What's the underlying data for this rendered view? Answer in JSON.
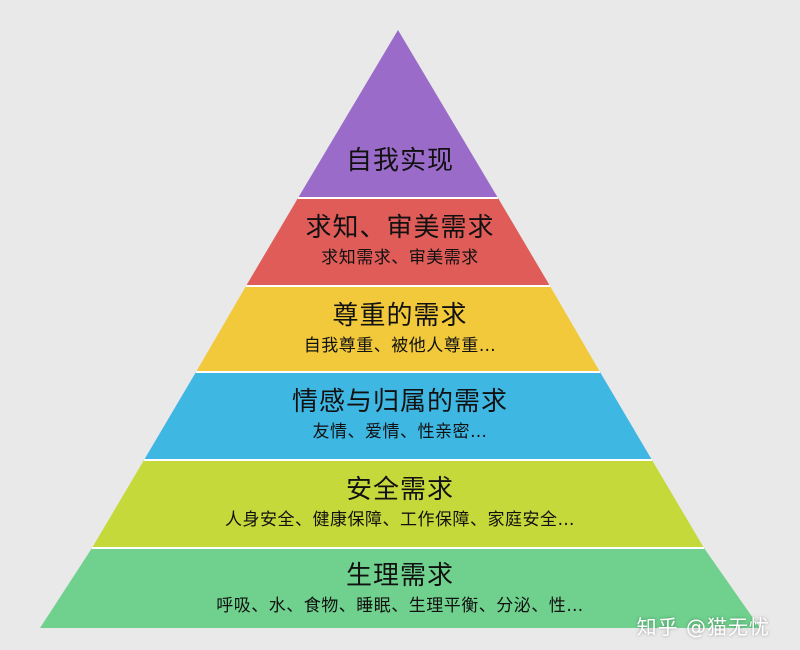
{
  "levels": [
    {
      "title": "自我实现",
      "subtitle": "",
      "color": "#9b6bc9"
    },
    {
      "title": "求知、审美需求",
      "subtitle": "求知需求、审美需求",
      "color": "#e05c58"
    },
    {
      "title": "尊重的需求",
      "subtitle": "自我尊重、被他人尊重…",
      "color": "#f2c93a"
    },
    {
      "title": "情感与归属的需求",
      "subtitle": "友情、爱情、性亲密…",
      "color": "#3fb7e3"
    },
    {
      "title": "安全需求",
      "subtitle": "人身安全、健康保障、工作保障、家庭安全…",
      "color": "#c6d93a"
    },
    {
      "title": "生理需求",
      "subtitle": "呼吸、水、食物、睡眠、生理平衡、分泌、性…",
      "color": "#6fd18d"
    }
  ],
  "watermark": "知乎 @猫无忧"
}
